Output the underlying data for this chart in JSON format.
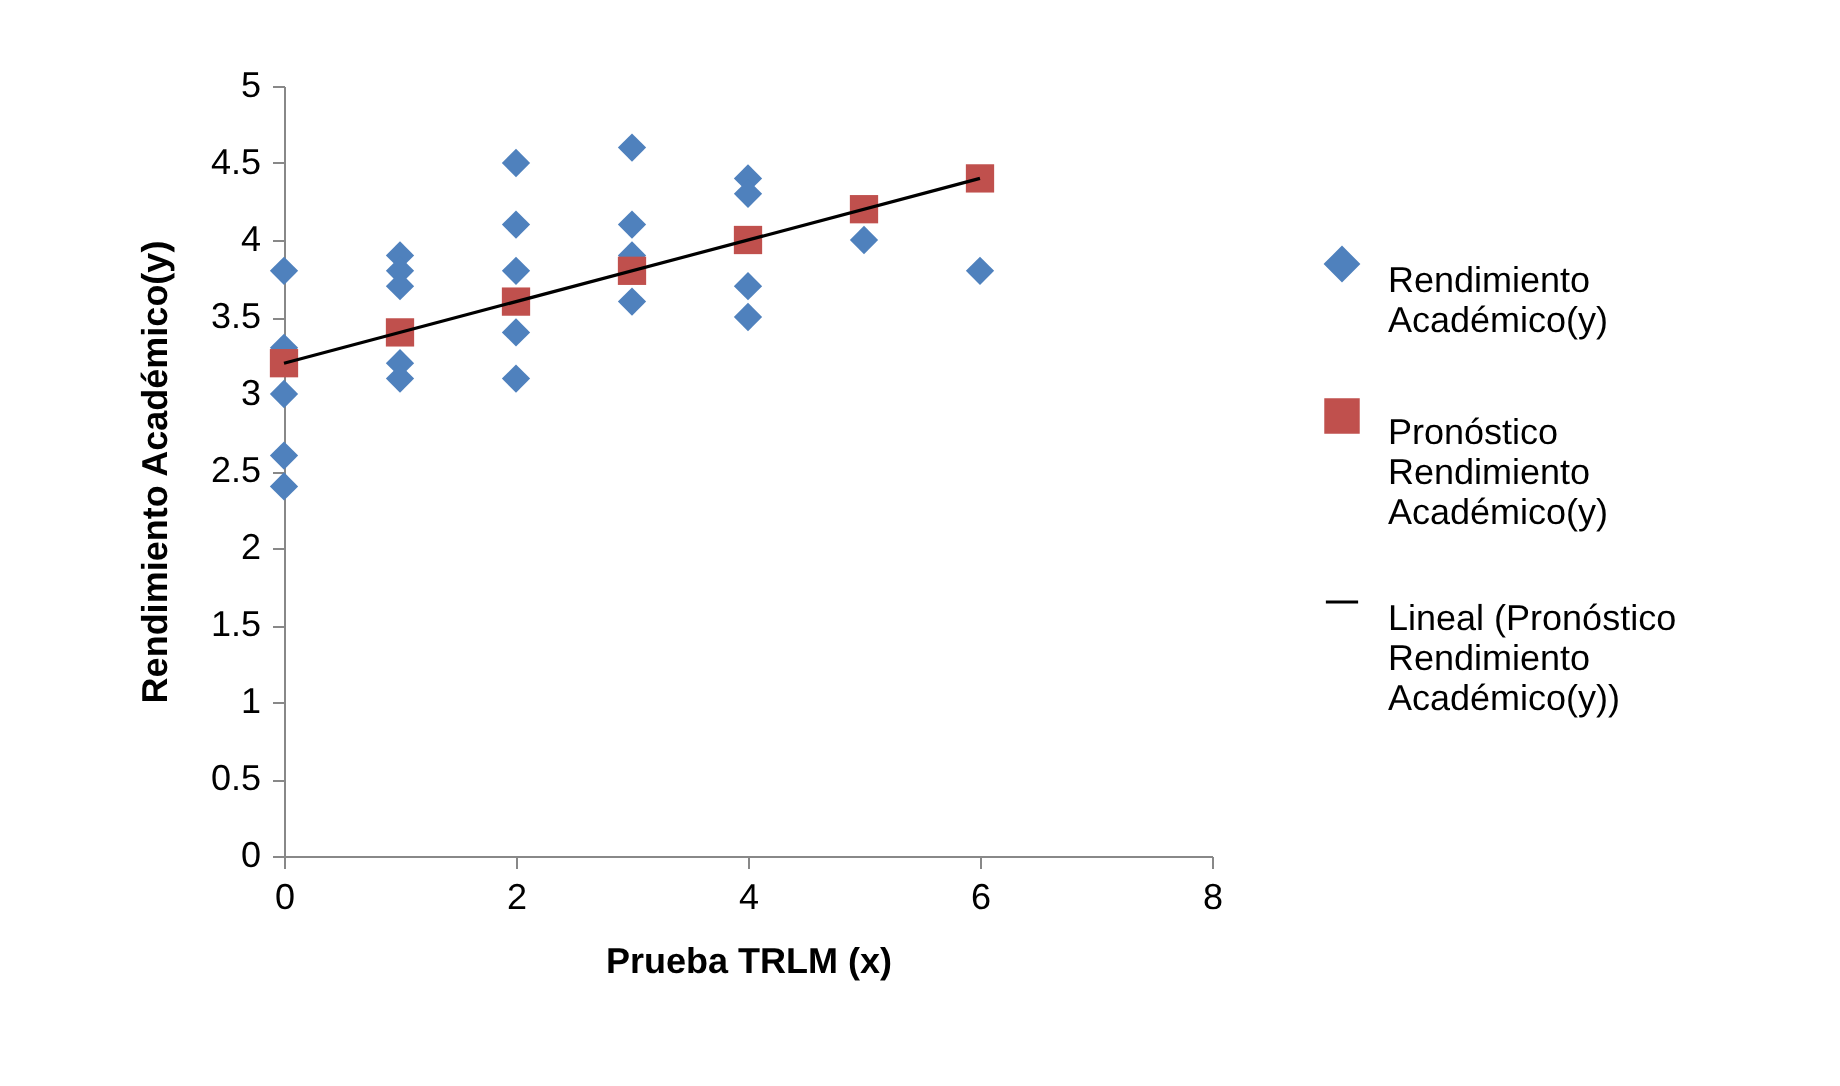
{
  "chart_data": {
    "type": "scatter",
    "xlabel": "Prueba TRLM (x)",
    "ylabel": "Rendimiento Académico(y)",
    "xlim": [
      0,
      8
    ],
    "xticks": [
      0,
      2,
      4,
      6,
      8
    ],
    "ylim": [
      0,
      5
    ],
    "yticks": [
      0,
      0.5,
      1,
      1.5,
      2,
      2.5,
      3,
      3.5,
      4,
      4.5,
      5
    ],
    "grid": false,
    "legend": "right",
    "series": [
      {
        "name": "Rendimiento Académico(y)",
        "type": "scatter",
        "marker": "diamond",
        "color": "#4f81bd",
        "x": [
          0,
          0,
          0,
          0,
          0,
          1,
          1,
          1,
          1,
          1,
          2,
          2,
          2,
          2,
          2,
          3,
          3,
          3,
          3,
          4,
          4,
          4,
          4,
          5,
          6
        ],
        "values": [
          3.8,
          3.3,
          3.0,
          2.6,
          2.4,
          3.9,
          3.8,
          3.7,
          3.2,
          3.1,
          4.5,
          4.1,
          3.8,
          3.4,
          3.1,
          4.6,
          4.1,
          3.9,
          3.6,
          4.4,
          4.3,
          3.7,
          3.5,
          4.0,
          3.8
        ]
      },
      {
        "name": "Pronóstico Rendimiento Académico(y)",
        "type": "scatter",
        "marker": "square",
        "color": "#c0504d",
        "x": [
          0,
          1,
          2,
          3,
          4,
          5,
          6
        ],
        "values": [
          3.2,
          3.4,
          3.6,
          3.8,
          4.0,
          4.2,
          4.4
        ]
      },
      {
        "name": "Lineal (Pronóstico Rendimiento Académico(y))",
        "type": "line",
        "marker": "none",
        "line_style": "solid",
        "color": "#000000",
        "x": [
          0,
          6
        ],
        "values": [
          3.2,
          4.4
        ]
      }
    ]
  }
}
